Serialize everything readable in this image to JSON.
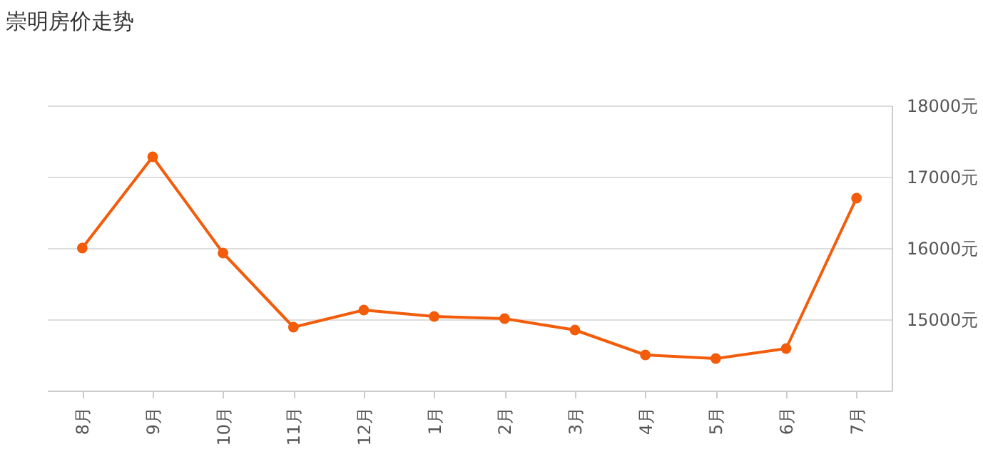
{
  "chart_data": {
    "type": "line",
    "title": "崇明房价走势",
    "categories": [
      "8月",
      "9月",
      "10月",
      "11月",
      "12月",
      "1月",
      "2月",
      "3月",
      "4月",
      "5月",
      "6月",
      "7月"
    ],
    "series": [
      {
        "color": "#f25c0a",
        "values": [
          16000,
          17280,
          15930,
          14890,
          15130,
          15040,
          15010,
          14850,
          14500,
          14450,
          14590,
          16700
        ]
      }
    ],
    "ylim": [
      14000,
      18000
    ],
    "yticks": [
      {
        "value": 15000,
        "label": "15000元"
      },
      {
        "value": 16000,
        "label": "16000元"
      },
      {
        "value": 17000,
        "label": "17000元"
      },
      {
        "value": 18000,
        "label": "18000元"
      }
    ],
    "grid": "y",
    "marker": "circle",
    "line_style": "solid",
    "legend": false
  }
}
